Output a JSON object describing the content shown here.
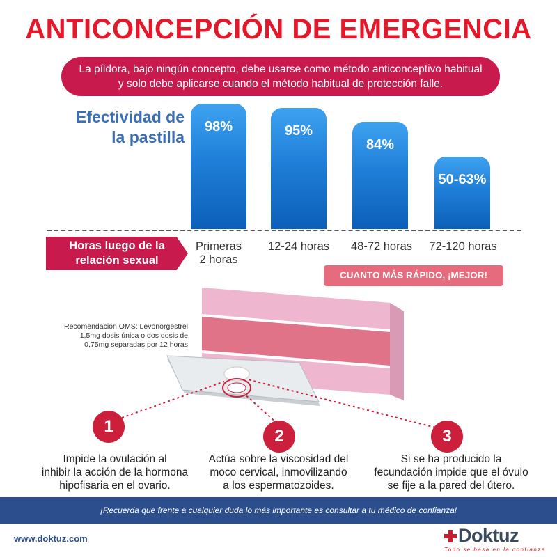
{
  "title": "ANTICONCEPCIÓN DE EMERGENCIA",
  "banner": "La píldora, bajo ningún concepto, debe usarse como método anticonceptivo habitual y solo debe aplicarse cuando el método habitual de protección falle.",
  "effectiveness": {
    "title_line1": "Efectividad de",
    "title_line2": "la pastilla",
    "hours_label_line1": "Horas luego de la",
    "hours_label_line2": "relación sexual",
    "bars": [
      {
        "label": "98%",
        "value": 98,
        "cat_line1": "Primeras",
        "cat_line2": "2 horas"
      },
      {
        "label": "95%",
        "value": 95,
        "cat_line1": "12-24 horas",
        "cat_line2": ""
      },
      {
        "label": "84%",
        "value": 84,
        "cat_line1": "48-72 horas",
        "cat_line2": ""
      },
      {
        "label": "50-63%",
        "value": 56.5,
        "cat_line1": "72-120 horas",
        "cat_line2": ""
      }
    ],
    "faster_label": "CUANTO MÁS RÁPIDO, ¡MEJOR!"
  },
  "oms": {
    "line1": "Recomendación OMS: Levonorgestrel",
    "line2": "1,5mg dosis única o dos dosis de",
    "line3": "0,75mg separadas por 12 horas"
  },
  "mechanisms": [
    {
      "number": "1",
      "line1": "Impide la ovulación al",
      "line2": "inhibir la acción de la hormona",
      "line3": "hipofisaria en el ovario."
    },
    {
      "number": "2",
      "line1": "Actúa sobre la viscosidad del",
      "line2": "moco cervical, inmovilizando",
      "line3": "a los espermatozoides."
    },
    {
      "number": "3",
      "line1": "Si se ha producido la",
      "line2": "fecundación impide que el óvulo",
      "line3": "se fije a la pared del útero."
    }
  ],
  "footer": {
    "notice": "¡Recuerda que frente a cualquier duda lo más importante es consultar a tu médico de confianza!",
    "website": "www.doktuz.com",
    "logo_name": "Doktuz",
    "logo_tagline": "Todo se basa en la confianza"
  },
  "colors": {
    "title_red": "#e3192b",
    "banner_crimson": "#c91a4d",
    "bar_blue": "#1f7fd8",
    "footer_navy": "#2c4e8c"
  },
  "chart_data": {
    "type": "bar",
    "categories": [
      "Primeras 2 horas",
      "12-24 horas",
      "48-72 horas",
      "72-120 horas"
    ],
    "values": [
      98,
      95,
      84,
      56.5
    ],
    "title": "Efectividad de la pastilla",
    "xlabel": "Horas luego de la relación sexual",
    "ylabel": "",
    "ylim": [
      0,
      100
    ]
  }
}
